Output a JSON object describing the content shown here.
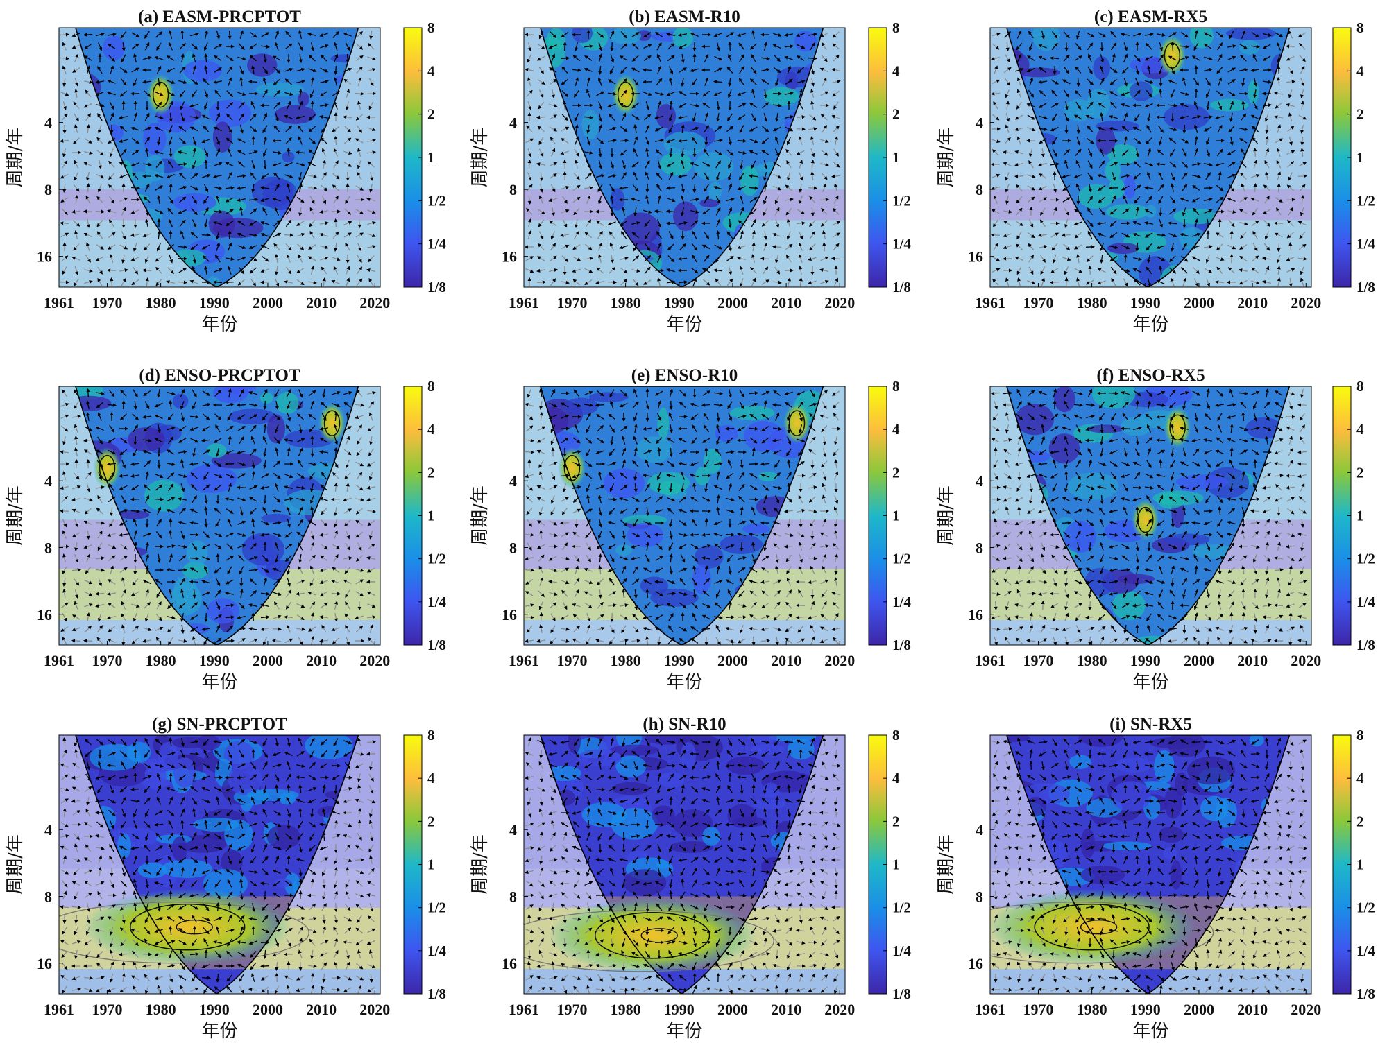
{
  "chart_data": {
    "type": "heatmap",
    "description_kind": "cross wavelet transform panels",
    "shared": {
      "xlabel": "年份",
      "ylabel": "周期/年",
      "x_ticks": [
        "1961",
        "1970",
        "1980",
        "1990",
        "2000",
        "2010",
        "2020"
      ],
      "x_tick_values": [
        1961,
        1970,
        1980,
        1990,
        2000,
        2010,
        2020
      ],
      "xlim": [
        1961,
        2021
      ],
      "y_ticks": [
        "4",
        "8",
        "16"
      ],
      "y_tick_values": [
        4,
        8,
        16
      ],
      "ylim": [
        1.5,
        22
      ],
      "colorbar_ticks": [
        "8",
        "4",
        "2",
        "1",
        "1/2",
        "1/4",
        "1/8"
      ],
      "colorbar_values": [
        8,
        4,
        2,
        1,
        0.5,
        0.25,
        0.125
      ],
      "colorbar_colors": [
        "#f9fb0e",
        "#fcbd3d",
        "#a8c630",
        "#26bcb2",
        "#1a8ee8",
        "#3e56f0",
        "#3d26a8"
      ]
    },
    "panels": [
      {
        "id": "a",
        "title": "(a) EASM-PRCPTOT",
        "hot": [
          {
            "year": 1980,
            "period": 3,
            "power": 4
          }
        ]
      },
      {
        "id": "b",
        "title": "(b) EASM-R10",
        "hot": [
          {
            "year": 1980,
            "period": 3,
            "power": 4
          }
        ]
      },
      {
        "id": "c",
        "title": "(c) EASM-RX5",
        "hot": [
          {
            "year": 1995,
            "period": 2,
            "power": 4
          }
        ]
      },
      {
        "id": "d",
        "title": "(d) ENSO-PRCPTOT",
        "hot": [
          {
            "year": 1970,
            "period": 3.5,
            "power": 4
          },
          {
            "year": 2012,
            "period": 2.2,
            "power": 2
          }
        ]
      },
      {
        "id": "e",
        "title": "(e) ENSO-R10",
        "hot": [
          {
            "year": 1970,
            "period": 3.5,
            "power": 4
          },
          {
            "year": 2012,
            "period": 2.2,
            "power": 2
          }
        ]
      },
      {
        "id": "f",
        "title": "(f) ENSO-RX5",
        "hot": [
          {
            "year": 1990,
            "period": 6,
            "power": 2
          },
          {
            "year": 1996,
            "period": 2.3,
            "power": 2
          }
        ]
      },
      {
        "id": "g",
        "title": "(g) SN-PRCPTOT",
        "hot": [
          {
            "year": 1985,
            "period": 11,
            "power": 6
          }
        ]
      },
      {
        "id": "h",
        "title": "(h) SN-R10",
        "hot": [
          {
            "year": 1985,
            "period": 12,
            "power": 6
          }
        ]
      },
      {
        "id": "i",
        "title": "(i) SN-RX5",
        "hot": [
          {
            "year": 1980,
            "period": 11,
            "power": 6
          }
        ]
      }
    ]
  }
}
